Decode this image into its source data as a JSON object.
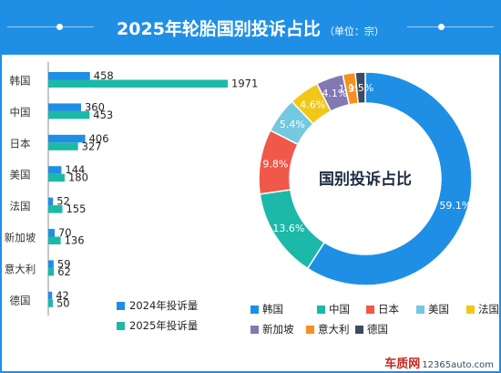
{
  "header": {
    "title": "2025年轮胎国别投诉占比",
    "unit": "（单位：宗）"
  },
  "colors": {
    "header_bg": "#1f8fe6",
    "series_2024": "#1f8fe6",
    "series_2025": "#1cb8a8"
  },
  "watermark": {
    "brand": "车质网",
    "url": "12365auto.com"
  },
  "chart_data": [
    {
      "type": "bar",
      "orientation": "horizontal",
      "categories": [
        "韩国",
        "中国",
        "日本",
        "美国",
        "法国",
        "新加坡",
        "意大利",
        "德国"
      ],
      "series": [
        {
          "name": "2024年投诉量",
          "values": [
            458,
            360,
            406,
            144,
            52,
            70,
            59,
            42
          ],
          "color": "#1f8fe6"
        },
        {
          "name": "2025年投诉量",
          "values": [
            1971,
            453,
            327,
            180,
            155,
            136,
            62,
            50
          ],
          "color": "#1cb8a8"
        }
      ],
      "xlim": [
        0,
        1971
      ],
      "grid": false,
      "legend": "bottom-left"
    },
    {
      "type": "pie",
      "variant": "donut",
      "center_label": "国别投诉占比",
      "categories": [
        "韩国",
        "中国",
        "日本",
        "美国",
        "法国",
        "新加坡",
        "意大利",
        "德国"
      ],
      "values": [
        59.1,
        13.6,
        9.8,
        5.4,
        4.6,
        4.1,
        1.9,
        1.5
      ],
      "labels": [
        "59.1%",
        "13.6%",
        "9.8%",
        "5.4%",
        "4.6%",
        "4.1%",
        "1.9%",
        "1.5%"
      ],
      "colors": [
        "#1f8fe6",
        "#1cb8a8",
        "#f0584a",
        "#74c8e0",
        "#f2c818",
        "#8278b4",
        "#f59020",
        "#3c4a64"
      ],
      "legend": "bottom"
    }
  ]
}
